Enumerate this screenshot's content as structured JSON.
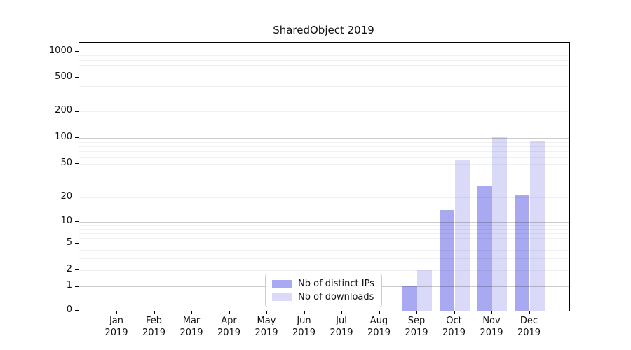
{
  "chart_data": {
    "type": "bar",
    "title": "SharedObject 2019",
    "categories": [
      "Jan 2019",
      "Feb 2019",
      "Mar 2019",
      "Apr 2019",
      "May 2019",
      "Jun 2019",
      "Jul 2019",
      "Aug 2019",
      "Sep 2019",
      "Oct 2019",
      "Nov 2019",
      "Dec 2019"
    ],
    "series": [
      {
        "name": "Nb of distinct IPs",
        "color": "#a9a9f2",
        "values": [
          0,
          0,
          0,
          0,
          0,
          0,
          0,
          0,
          1,
          14,
          27,
          21
        ]
      },
      {
        "name": "Nb of downloads",
        "color": "#dadaf8",
        "values": [
          0,
          0,
          0,
          0,
          0,
          0,
          0,
          0,
          2,
          55,
          102,
          92
        ]
      }
    ],
    "xlabel": "",
    "ylabel": "",
    "yscale": "log-with-zero",
    "yticks": [
      0,
      1,
      2,
      5,
      10,
      20,
      50,
      100,
      200,
      500,
      1000
    ],
    "major_grid_values": [
      1,
      10,
      100,
      1000
    ],
    "ylim": [
      0,
      1300
    ],
    "grid": true,
    "legend_position": "inside-lower-center"
  },
  "colors": {
    "spine": "#000000",
    "major_grid": "#cbcbcb",
    "minor_grid": "#ececec",
    "background": "#ffffff"
  }
}
